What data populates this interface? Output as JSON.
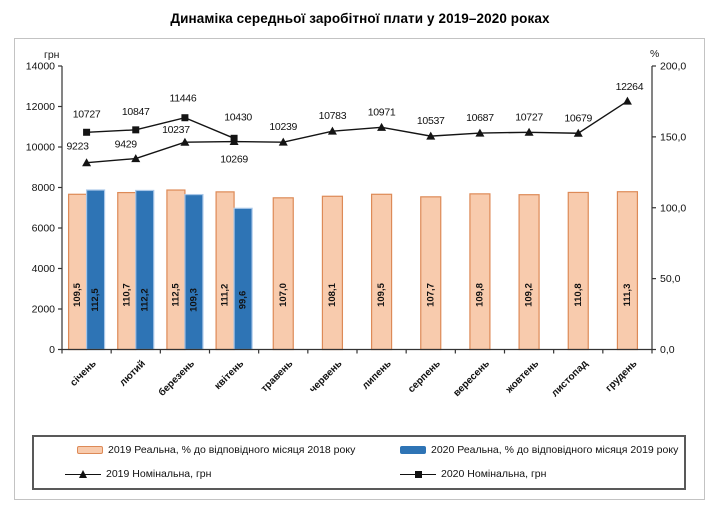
{
  "title": "Динаміка середньої заробітної плати у 2019–2020 роках",
  "chart_data": {
    "type": "bar",
    "subtype": "combo-bar-line",
    "categories": [
      "січень",
      "лютий",
      "березень",
      "квітень",
      "травень",
      "червень",
      "липень",
      "серпень",
      "вересень",
      "жовтень",
      "листопад",
      "грудень"
    ],
    "left_axis": {
      "unit": "грн",
      "min": 0,
      "max": 14000,
      "step": 2000,
      "ticks": [
        "0",
        "2000",
        "4000",
        "6000",
        "8000",
        "10000",
        "12000",
        "14000"
      ]
    },
    "right_axis": {
      "unit": "%",
      "min": 0,
      "max": 200,
      "step": 50,
      "ticks": [
        "0,0",
        "50,0",
        "100,0",
        "150,0",
        "200,0"
      ]
    },
    "grid": false,
    "legend_position": "bottom",
    "series": [
      {
        "name": "2019 Реальна, % до відповідного місяця 2018 року",
        "type": "bar",
        "axis": "right",
        "fill": "#F8CBAD",
        "stroke": "#DD8A57",
        "values": [
          109.5,
          110.7,
          112.5,
          111.2,
          107.0,
          108.1,
          109.5,
          107.7,
          109.8,
          109.2,
          110.8,
          111.3
        ],
        "labels": [
          "109,5",
          "110,7",
          "112,5",
          "111,2",
          "107,0",
          "108,1",
          "109,5",
          "107,7",
          "109,8",
          "109,2",
          "110,8",
          "111,3"
        ]
      },
      {
        "name": "2020 Реальна, % до відповідного місяця 2019 року",
        "type": "bar",
        "axis": "right",
        "fill": "#2E74B5",
        "stroke": "#A9C7E8",
        "values": [
          112.5,
          112.2,
          109.3,
          99.6
        ],
        "labels": [
          "112,5",
          "112,2",
          "109,3",
          "99,6"
        ]
      },
      {
        "name": "2019 Номінальна, грн",
        "type": "line",
        "axis": "left",
        "marker": "triangle",
        "color": "#141414",
        "values": [
          9223,
          9429,
          10237,
          10269,
          10239,
          10783,
          10971,
          10537,
          10687,
          10727,
          10679,
          12264
        ],
        "labels": [
          "9223",
          "9429",
          "10237",
          "10269",
          "10239",
          "10783",
          "10971",
          "10537",
          "10687",
          "10727",
          "10679",
          "12264"
        ]
      },
      {
        "name": "2020 Номінальна, грн",
        "type": "line",
        "axis": "left",
        "marker": "square",
        "color": "#141414",
        "values": [
          10727,
          10847,
          11446,
          10430
        ],
        "labels": [
          "10727",
          "10847",
          "11446",
          "10430"
        ]
      }
    ]
  },
  "legend": {
    "items": [
      {
        "label": "2019 Реальна, % до відповідного місяця 2018 року",
        "swatch": "pink-bar"
      },
      {
        "label": "2020 Реальна, % до відповідного місяця 2019 року",
        "swatch": "blue-bar"
      },
      {
        "label": "2019 Номінальна, грн",
        "swatch": "triangle-line"
      },
      {
        "label": "2020 Номінальна, грн",
        "swatch": "square-line"
      }
    ]
  }
}
